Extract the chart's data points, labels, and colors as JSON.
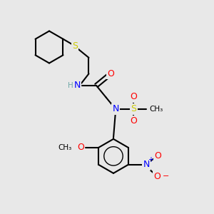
{
  "bg_color": "#e8e8e8",
  "atom_colors": {
    "C": "#000000",
    "H": "#6fa8a8",
    "N": "#0000ff",
    "O": "#ff0000",
    "S": "#cccc00",
    "S_sulfonyl": "#cccc00"
  },
  "bond_color": "#000000",
  "bond_width": 1.5,
  "font_size_atom": 9,
  "font_size_small": 7.5
}
